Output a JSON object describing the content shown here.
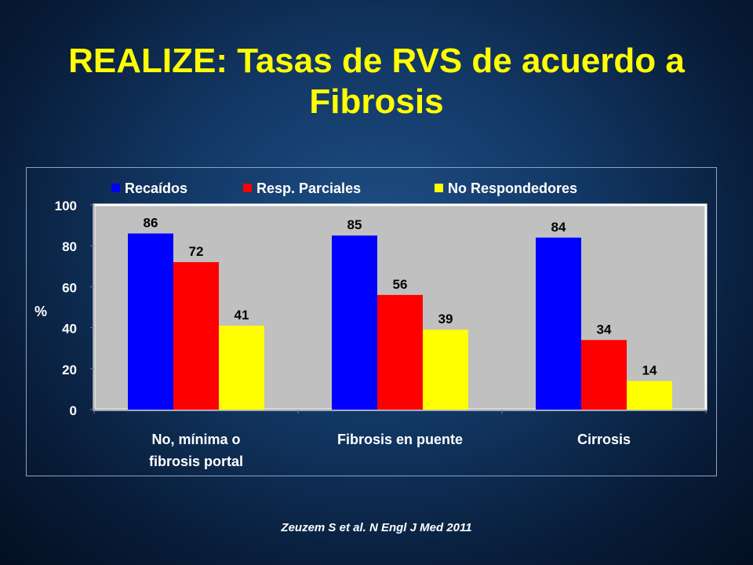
{
  "slide": {
    "title": "REALIZE: Tasas de RVS de acuerdo a Fibrosis",
    "citation": "Zeuzem S et al. N Engl J Med 2011"
  },
  "colors": {
    "background": "#0e2f58",
    "title": "#ffff00",
    "plot_area": "#c0c0c0",
    "text": "#ffffff",
    "data_label": "#000000"
  },
  "chart_data": {
    "type": "bar",
    "categories": [
      "No, mínima o fibrosis portal",
      "Fibrosis en puente",
      "Cirrosis"
    ],
    "category_label_lines": [
      [
        "No, mínima o",
        "fibrosis portal"
      ],
      [
        "Fibrosis en puente"
      ],
      [
        "Cirrosis"
      ]
    ],
    "series": [
      {
        "name": "Recaídos",
        "color": "#0000ff",
        "values": [
          86,
          85,
          84
        ]
      },
      {
        "name": "Resp. Parciales",
        "color": "#ff0000",
        "values": [
          72,
          56,
          34
        ]
      },
      {
        "name": "No Respondedores",
        "color": "#ffff00",
        "values": [
          41,
          39,
          14
        ]
      }
    ],
    "ylabel": "%",
    "xlabel": "",
    "ylim": [
      0,
      100
    ],
    "yticks": [
      0,
      20,
      40,
      60,
      80,
      100
    ],
    "data_labels": true,
    "grid": false,
    "legend": "top"
  }
}
